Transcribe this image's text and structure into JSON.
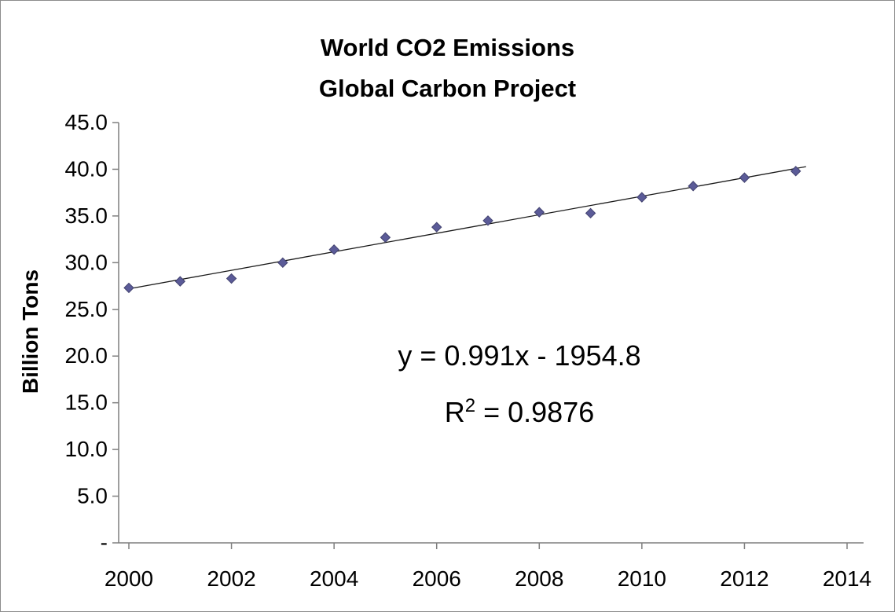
{
  "chart_data": {
    "type": "scatter",
    "title_lines": [
      "World CO2 Emissions",
      "Global Carbon Project"
    ],
    "ylabel": "Billion Tons",
    "xlabel": "",
    "x": [
      2000,
      2001,
      2002,
      2003,
      2004,
      2005,
      2006,
      2007,
      2008,
      2009,
      2010,
      2011,
      2012,
      2013
    ],
    "values": [
      27.3,
      28.0,
      28.3,
      30.0,
      31.4,
      32.7,
      33.8,
      34.5,
      35.4,
      35.3,
      37.0,
      38.2,
      39.1,
      39.8
    ],
    "xlim": [
      2000,
      2014
    ],
    "ylim": [
      0,
      45
    ],
    "x_ticks": [
      2000,
      2002,
      2004,
      2006,
      2008,
      2010,
      2012,
      2014
    ],
    "x_tick_labels": [
      "2000",
      "2002",
      "2004",
      "2006",
      "2008",
      "2010",
      "2012",
      "2014"
    ],
    "y_ticks": [
      45,
      40,
      35,
      30,
      25,
      20,
      15,
      10,
      5,
      0
    ],
    "y_tick_labels": [
      "45.0",
      "40.0",
      "35.0",
      "30.0",
      "25.0",
      "20.0",
      "15.0",
      "10.0",
      "5.0",
      "-"
    ],
    "grid": "off",
    "legend": "none",
    "trendline": {
      "slope": 0.991,
      "intercept": -1954.8,
      "equation": "y = 0.991x - 1954.8",
      "r2_base": "R",
      "r2_exponent": "2",
      "r2_rest": " = 0.9876",
      "x_start": 2000,
      "x_end": 2013.2
    },
    "marker_color": "#5b5b98",
    "marker_stroke": "#41416e",
    "trendline_color": "#1a1a1a",
    "axis_color": "#7f7f7f",
    "text_color": "#000000"
  }
}
